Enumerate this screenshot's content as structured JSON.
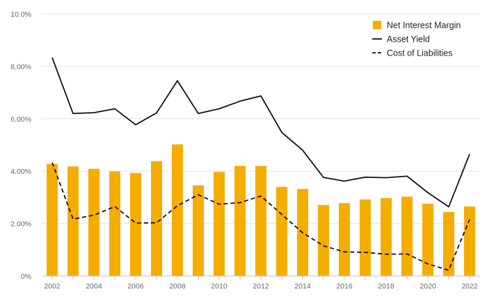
{
  "chart_data": {
    "type": "bar",
    "title": "",
    "xlabel": "",
    "ylabel": "",
    "ylim": [
      0,
      10
    ],
    "yticks": [
      0,
      2,
      4,
      6,
      8,
      10
    ],
    "ytick_labels": [
      "0%",
      "2.00%",
      "4.00%",
      "6.00%",
      "8.00%",
      "10.0%"
    ],
    "categories": [
      "2002",
      "2003",
      "2004",
      "2005",
      "2006",
      "2007",
      "2008",
      "2009",
      "2010",
      "2011",
      "2012",
      "2013",
      "2014",
      "2015",
      "2016",
      "2017",
      "2018",
      "2019",
      "2020",
      "2021",
      "2022"
    ],
    "xtick_labels": [
      "2002",
      "2004",
      "2006",
      "2008",
      "2010",
      "2012",
      "2014",
      "2016",
      "2018",
      "2020",
      "2022"
    ],
    "grid": true,
    "legend_position": "top-right",
    "series": [
      {
        "name": "Net Interest Margin",
        "kind": "bar",
        "color": "#f5ad00",
        "values": [
          4.27,
          4.18,
          4.09,
          3.99,
          3.93,
          4.38,
          5.02,
          3.46,
          3.97,
          4.2,
          4.2,
          3.4,
          3.32,
          2.71,
          2.78,
          2.92,
          2.97,
          3.03,
          2.76,
          2.44,
          2.65
        ]
      },
      {
        "name": "Asset Yield",
        "kind": "line",
        "color": "#111111",
        "dash": "solid",
        "values": [
          8.33,
          6.2,
          6.23,
          6.38,
          5.77,
          6.22,
          7.45,
          6.2,
          6.38,
          6.67,
          6.87,
          5.48,
          4.8,
          3.76,
          3.62,
          3.77,
          3.75,
          3.81,
          3.18,
          2.64,
          4.65
        ]
      },
      {
        "name": "Cost of Liabilities",
        "kind": "line",
        "color": "#111111",
        "dash": "dashed",
        "values": [
          4.33,
          2.17,
          2.32,
          2.65,
          2.02,
          2.03,
          2.68,
          3.1,
          2.74,
          2.8,
          3.05,
          2.35,
          1.65,
          1.15,
          0.92,
          0.9,
          0.83,
          0.84,
          0.46,
          0.22,
          2.16
        ]
      }
    ]
  }
}
